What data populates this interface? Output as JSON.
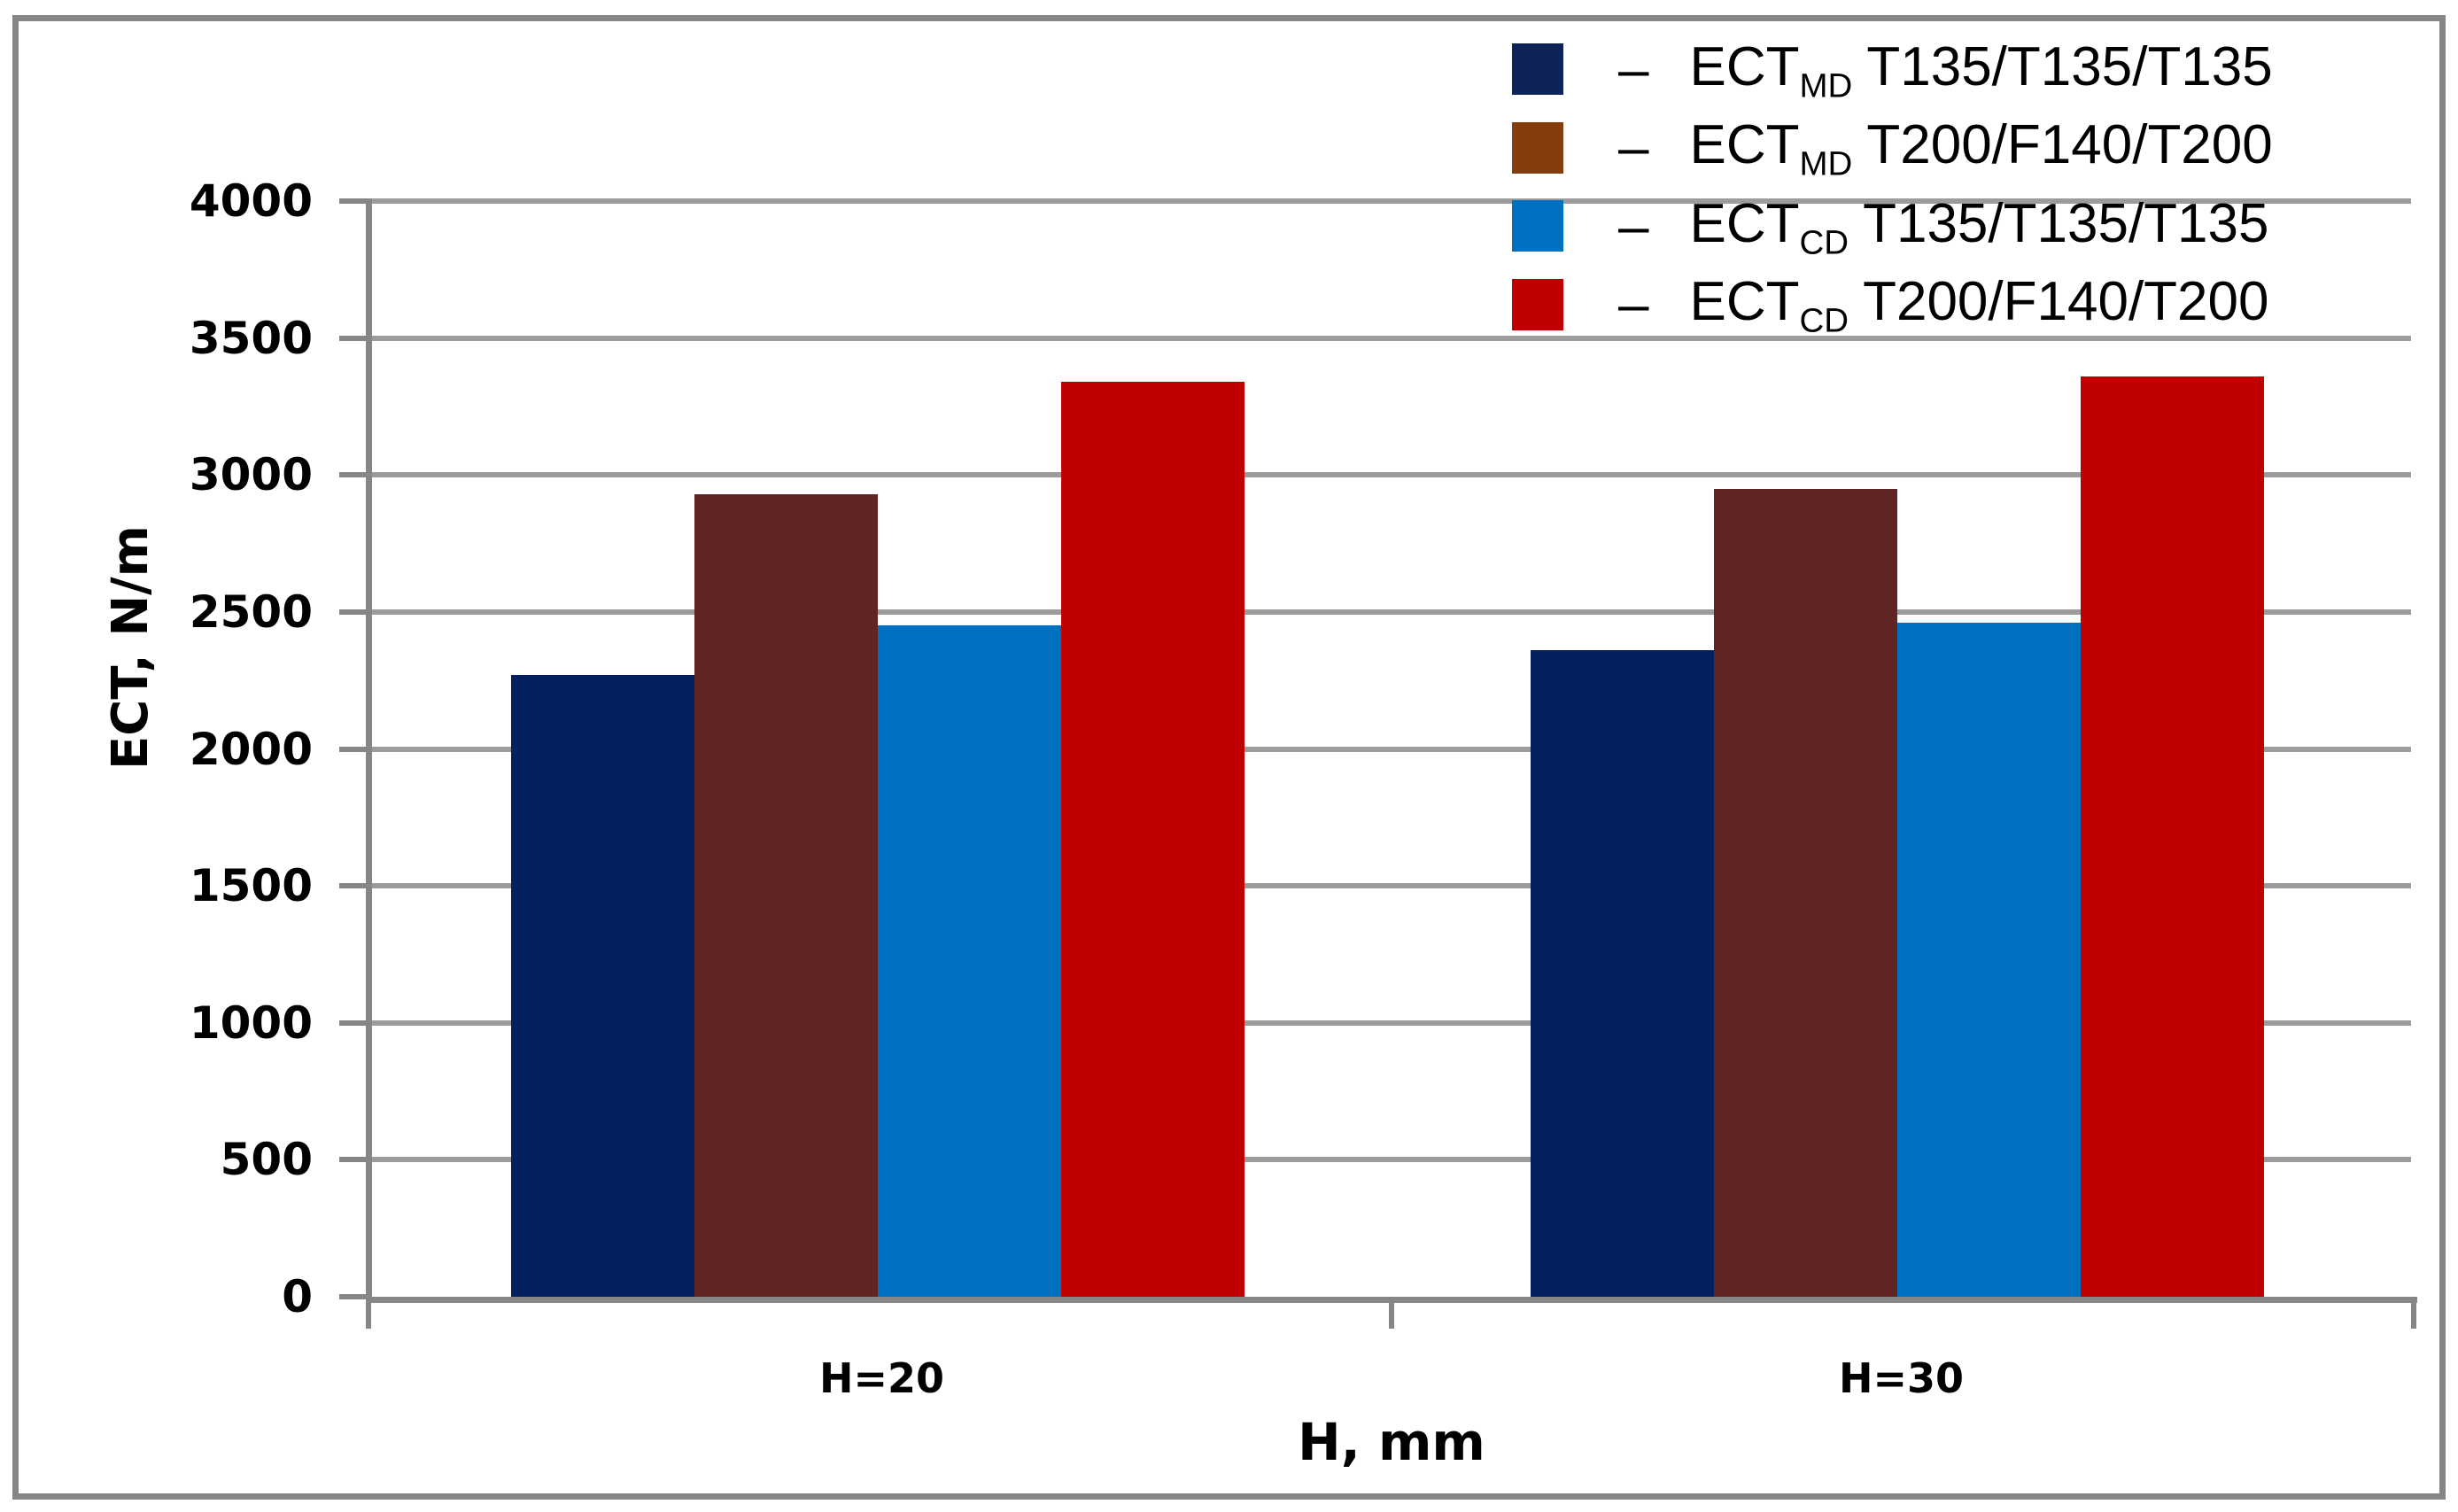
{
  "chart_data": {
    "type": "bar",
    "title": "",
    "categories": [
      "H=20",
      "H=30"
    ],
    "series": [
      {
        "name": "ECT MD T135/T135/T135",
        "label_main": "ECT",
        "label_sub": "MD",
        "label_spec": "T135/T135/T135",
        "color": "#032060",
        "legend_color": "#0E2459",
        "values": [
          2270,
          2360
        ]
      },
      {
        "name": "ECT MD T200/F140/T200",
        "label_main": "ECT",
        "label_sub": "MD",
        "label_spec": "T200/F140/T200",
        "color": "#5F2423",
        "legend_color": "#843C0C",
        "values": [
          2930,
          2950
        ]
      },
      {
        "name": "ECT CD T135/T135/T135",
        "label_main": "ECT",
        "label_sub": "CD",
        "label_spec": "T135/T135/T135",
        "color": "#0070C0",
        "legend_color": "#0070C0",
        "values": [
          2450,
          2460
        ]
      },
      {
        "name": "ECT CD T200/F140/T200",
        "label_main": "ECT",
        "label_sub": "CD",
        "label_spec": "T200/F140/T200",
        "color": "#C00000",
        "legend_color": "#C00000",
        "values": [
          3340,
          3360
        ]
      }
    ],
    "xlabel": "H, mm",
    "ylabel": "ECT, N/m",
    "ylim": [
      0,
      4000
    ],
    "ytick_step": 500,
    "ytick_labels": [
      "0",
      "500",
      "1000",
      "1500",
      "2000",
      "2500",
      "3000",
      "3500",
      "4000"
    ],
    "legend_position": "top-right",
    "legend_dash": "–",
    "grid": true,
    "colors": {
      "gridline": "#9C9C9C",
      "axis": "#868686",
      "border": "#868686",
      "text": "#000000",
      "background": "#FFFFFF"
    }
  }
}
